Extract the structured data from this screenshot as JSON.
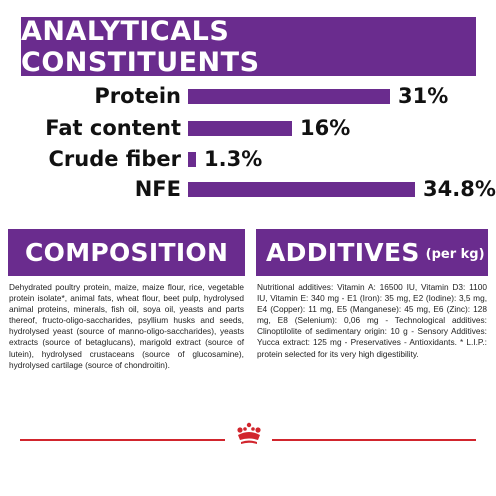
{
  "header": {
    "title": "ANALYTICALS CONSTITUENTS"
  },
  "constituents": [
    {
      "label": "Protein",
      "value": "31%",
      "percent": 31
    },
    {
      "label": "Fat content",
      "value": "16%",
      "percent": 16
    },
    {
      "label": "Crude fiber",
      "value": "1.3%",
      "percent": 1.3
    },
    {
      "label": "NFE",
      "value": "34.8%",
      "percent": 34.8
    }
  ],
  "composition": {
    "title": "COMPOSITION",
    "text": "Dehydrated poultry protein, maize, maize flour, rice, vegetable protein isolate*, animal fats, wheat flour, beet pulp, hydrolysed animal proteins, minerals, fish oil, soya oil, yeasts and parts thereof, fructo-oligo-saccharides, psyllium husks and seeds, hydrolysed yeast (source of manno-oligo-saccharides), yeasts extracts (source of betaglucans), marigold extract (source of lutein), hydrolysed crustaceans (source of glucosamine), hydrolysed cartilage (source of chondroitin)."
  },
  "additives": {
    "title": "ADDITIVES",
    "subtitle": "(per kg)",
    "text": "Nutritional additives: Vitamin A: 16500 IU, Vitamin D3: 1100 IU, Vitamin E: 340 mg - E1 (Iron): 35 mg, E2 (Iodine): 3,5 mg, E4 (Copper): 11 mg, E5 (Manganese): 45 mg, E6 (Zinc): 128 mg, E8 (Selenium): 0,06 mg - Technological additives: Clinoptilolite of sedimentary origin: 10 g - Sensory Additives: Yucca extract: 125 mg - Preservatives - Antioxidants. * L.I.P.: protein selected for its very high digestibility."
  },
  "colors": {
    "accent": "#6a2c8e",
    "brand_red": "#d1252d"
  },
  "icons": {
    "footer": "royal-canin-crown-icon"
  }
}
